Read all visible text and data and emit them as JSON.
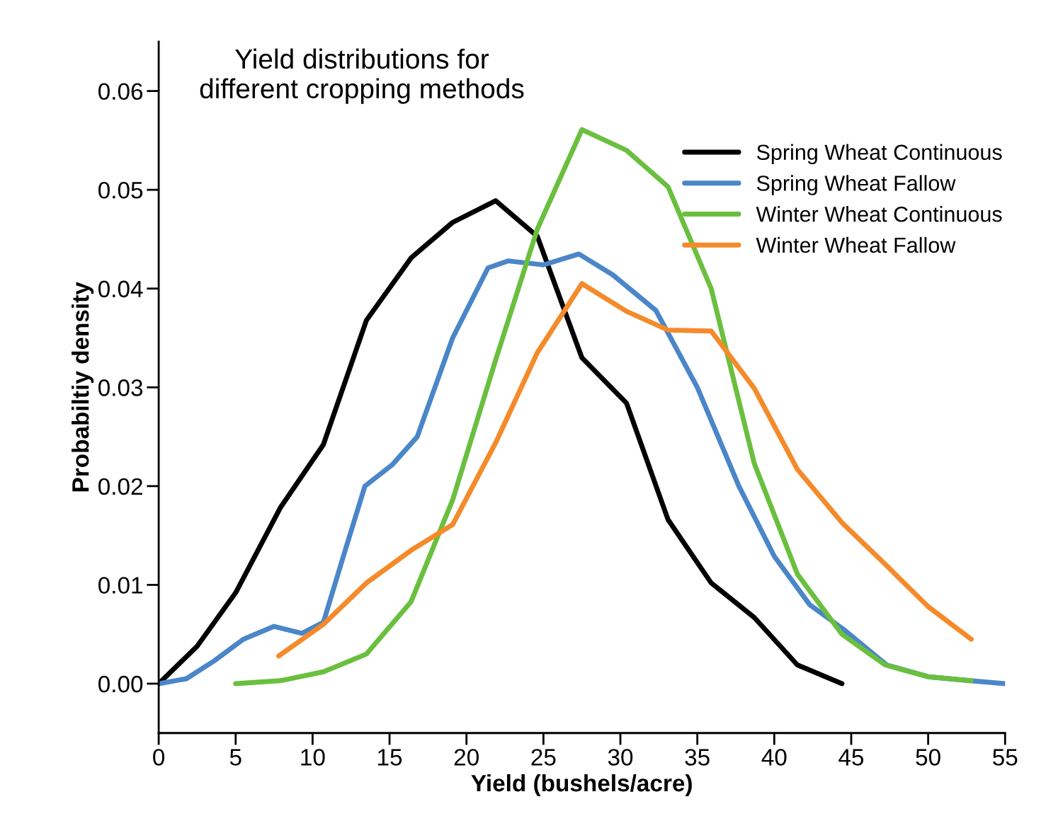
{
  "chart_data": {
    "type": "line",
    "title": "Yield distributions for\ndifferent cropping methods",
    "xlabel": "Yield (bushels/acre)",
    "ylabel": "Probabiltiy density",
    "xlim": [
      0,
      55
    ],
    "xticks": [
      0,
      5,
      10,
      15,
      20,
      25,
      30,
      35,
      40,
      45,
      50,
      55
    ],
    "ylim": [
      -0.005,
      0.065
    ],
    "yticks": [
      {
        "value": 0,
        "label": "0.00"
      },
      {
        "value": 0.01,
        "label": "0.01"
      },
      {
        "value": 0.02,
        "label": "0.02"
      },
      {
        "value": 0.03,
        "label": "0.03"
      },
      {
        "value": 0.04,
        "label": "0.04"
      },
      {
        "value": 0.05,
        "label": "0.05"
      },
      {
        "value": 0.06,
        "label": "0.06"
      }
    ],
    "grid": false,
    "legend": "top right",
    "marker": "none",
    "line_style": "solid",
    "series": [
      {
        "name": "Spring Wheat Continuous",
        "color": "#000000",
        "x": [
          0,
          2.5,
          5,
          7.9,
          10.7,
          13.5,
          16.4,
          19.1,
          21.9,
          24.6,
          27.5,
          30.4,
          33.1,
          35.9,
          38.7,
          41.5,
          44.4
        ],
        "values": [
          0,
          0.0038,
          0.0092,
          0.0178,
          0.0242,
          0.0368,
          0.0431,
          0.0467,
          0.0489,
          0.0453,
          0.033,
          0.0284,
          0.0166,
          0.0102,
          0.0067,
          0.0019,
          0
        ]
      },
      {
        "name": "Spring Wheat Fallow",
        "color": "#4a86c8",
        "x": [
          0,
          1.8,
          3.6,
          5.5,
          7.5,
          9.3,
          10.7,
          12,
          13.4,
          15.2,
          16.8,
          19.1,
          21.4,
          22.7,
          25,
          27.3,
          29.5,
          32.3,
          35,
          37.7,
          40,
          42.3,
          44.5,
          47.3,
          50,
          52.7,
          55
        ],
        "values": [
          0,
          0.0005,
          0.0023,
          0.0045,
          0.0058,
          0.0051,
          0.0062,
          0.0129,
          0.02,
          0.0222,
          0.025,
          0.035,
          0.0421,
          0.0428,
          0.0424,
          0.0435,
          0.0414,
          0.0378,
          0.03,
          0.02,
          0.0129,
          0.008,
          0.0055,
          0.0019,
          0.0007,
          0.0003,
          0
        ]
      },
      {
        "name": "Winter Wheat Continuous",
        "color": "#6abf3f",
        "x": [
          5,
          7.9,
          10.7,
          13.5,
          16.4,
          19.1,
          21.9,
          24.6,
          27.5,
          30.4,
          33.1,
          35.9,
          38.7,
          41.5,
          44.4,
          47.2,
          50,
          52.8
        ],
        "values": [
          0,
          0.0003,
          0.0012,
          0.003,
          0.0083,
          0.0186,
          0.0328,
          0.046,
          0.0561,
          0.054,
          0.0503,
          0.04,
          0.0223,
          0.0111,
          0.005,
          0.0019,
          0.0007,
          0.0003
        ]
      },
      {
        "name": "Winter Wheat Fallow",
        "color": "#f58a2a",
        "x": [
          7.8,
          10.7,
          13.5,
          16.4,
          19.1,
          21.9,
          24.6,
          27.5,
          30.4,
          33.1,
          35.9,
          38.7,
          41.5,
          44.4,
          47.2,
          50,
          52.8
        ],
        "values": [
          0.0028,
          0.006,
          0.0102,
          0.0135,
          0.0161,
          0.0244,
          0.0335,
          0.0405,
          0.0377,
          0.0358,
          0.0357,
          0.0299,
          0.0217,
          0.0163,
          0.0121,
          0.0078,
          0.0045
        ]
      }
    ]
  }
}
